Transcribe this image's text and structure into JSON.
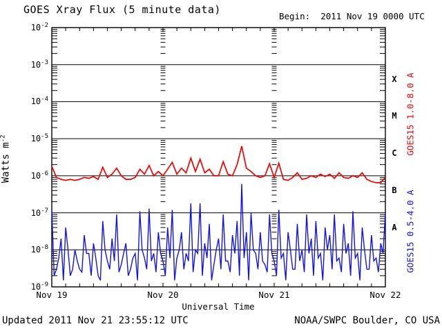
{
  "header": {
    "title": "GOES Xray Flux (5 minute data)",
    "begin_label": "Begin:  2011 Nov 19 0000 UTC"
  },
  "footer": {
    "updated": "Updated 2011 Nov 21 23:55:12 UTC",
    "source": "NOAA/SWPC Boulder, CO USA"
  },
  "colors": {
    "long_channel": "#f40000",
    "short_channel": "#1010f0",
    "axis": "#000000",
    "background": "#ffffff"
  },
  "chart_data": {
    "type": "line",
    "title": "GOES Xray Flux (5 minute data)",
    "xlabel": "Universal Time",
    "ylabel_parts": {
      "base": "Watts m",
      "exponent": "-2"
    },
    "y_scale": "log",
    "ylim": [
      1e-09,
      0.01
    ],
    "y_tick_exponents": [
      -2,
      -3,
      -4,
      -5,
      -6,
      -7,
      -8,
      -9
    ],
    "x_range_hours": [
      0,
      72
    ],
    "x_tick_hours": [
      0,
      24,
      48,
      72
    ],
    "x_tick_labels": [
      "Nov 19",
      "Nov 20",
      "Nov 21",
      "Nov 22"
    ],
    "x_minor_tick_hours": 3,
    "grid": "solid horizontal line each decade; dashed vertical tick-columns at day boundaries (24h, 48h)",
    "legend_position": "right-side rotated labels",
    "flare_class_labels": [
      {
        "label": "X",
        "band_top_exponent": -3
      },
      {
        "label": "M",
        "band_top_exponent": -4
      },
      {
        "label": "C",
        "band_top_exponent": -5
      },
      {
        "label": "B",
        "band_top_exponent": -6
      },
      {
        "label": "A",
        "band_top_exponent": -7
      }
    ],
    "series": [
      {
        "name": "GOES15 1.0-8.0 A",
        "color": "#f40000",
        "t_start_hours": 0,
        "t_step_hours": 1,
        "flux_watts_m2": [
          1.8e-06,
          9e-07,
          8e-07,
          7.5e-07,
          8e-07,
          7.5e-07,
          8e-07,
          9e-07,
          8.5e-07,
          9.5e-07,
          8e-07,
          1.7e-06,
          9e-07,
          1.1e-06,
          1.6e-06,
          1e-06,
          8e-07,
          8e-07,
          9e-07,
          1.5e-06,
          1.1e-06,
          1.9e-06,
          1e-06,
          1.3e-06,
          1e-06,
          1.5e-06,
          2.3e-06,
          1.1e-06,
          1.6e-06,
          1.2e-06,
          3e-06,
          1.3e-06,
          2.8e-06,
          1.2e-06,
          1.5e-06,
          1e-06,
          1e-06,
          2.4e-06,
          1.1e-06,
          1e-06,
          2e-06,
          6.3e-06,
          1.6e-06,
          1.3e-06,
          1e-06,
          9e-07,
          1e-06,
          2.1e-06,
          9e-07,
          2.2e-06,
          8e-07,
          7.5e-07,
          9e-07,
          1.2e-06,
          8e-07,
          8.5e-07,
          1e-06,
          9e-07,
          1.1e-06,
          9.5e-07,
          1.1e-06,
          8.5e-07,
          1.2e-06,
          9e-07,
          8.5e-07,
          1e-06,
          9e-07,
          1.2e-06,
          8e-07,
          7e-07,
          6.5e-07,
          6.5e-07,
          9e-07
        ]
      },
      {
        "name": "GOES15 0.5-4.0 A",
        "color": "#1010f0",
        "t_start_hours": 0,
        "t_step_hours": 0.5,
        "flux_watts_m2": [
          1.2e-07,
          2e-09,
          3e-09,
          6e-09,
          2e-08,
          1.5e-09,
          4e-08,
          1e-08,
          2e-09,
          3e-09,
          1e-08,
          5e-09,
          3e-09,
          2.5e-09,
          2.5e-08,
          8e-09,
          8e-09,
          2e-09,
          1.5e-08,
          6e-09,
          2e-09,
          1.5e-09,
          6e-08,
          1e-08,
          5e-09,
          3e-09,
          2e-08,
          5e-09,
          9e-08,
          2.5e-09,
          4e-09,
          8e-09,
          1.5e-08,
          2e-09,
          3e-09,
          6e-09,
          8e-09,
          1.5e-09,
          1.1e-07,
          1e-08,
          6e-09,
          3e-09,
          1.3e-07,
          5e-09,
          8e-09,
          2.5e-09,
          3e-08,
          8e-09,
          5e-09,
          2e-09,
          4e-08,
          6e-09,
          1.2e-07,
          1.5e-09,
          6e-09,
          1e-08,
          3e-08,
          3e-09,
          8e-09,
          5e-09,
          1.8e-07,
          2.5e-09,
          1e-08,
          8e-09,
          1.8e-07,
          2e-09,
          1.5e-08,
          6e-09,
          5e-08,
          1.5e-09,
          4e-09,
          1e-08,
          2e-08,
          3e-09,
          9e-08,
          5e-09,
          5e-09,
          2.5e-09,
          2.5e-08,
          8e-09,
          6e-08,
          2e-09,
          6e-07,
          6e-09,
          3e-08,
          1.5e-09,
          1e-07,
          1e-08,
          8e-09,
          3e-09,
          3e-08,
          5e-09,
          4e-09,
          2.5e-09,
          9e-08,
          8e-09,
          5e-09,
          2e-09,
          1.2e-07,
          6e-09,
          8e-09,
          1.5e-09,
          3e-08,
          1e-08,
          3e-09,
          3e-09,
          5e-08,
          5e-09,
          1e-08,
          2.5e-09,
          9e-08,
          8e-09,
          2e-08,
          2e-09,
          6e-08,
          6e-09,
          8e-09,
          1.5e-09,
          4e-08,
          1e-08,
          2.5e-08,
          3e-09,
          9e-08,
          5e-09,
          6e-09,
          2.5e-09,
          5e-08,
          8e-09,
          1.5e-08,
          2e-09,
          1.1e-07,
          6e-09,
          8e-09,
          1.5e-09,
          4e-08,
          1e-08,
          3e-09,
          3e-09,
          2.5e-08,
          5e-09,
          6e-09,
          2.5e-09,
          1.5e-08,
          8e-09,
          1e-07
        ]
      }
    ]
  }
}
